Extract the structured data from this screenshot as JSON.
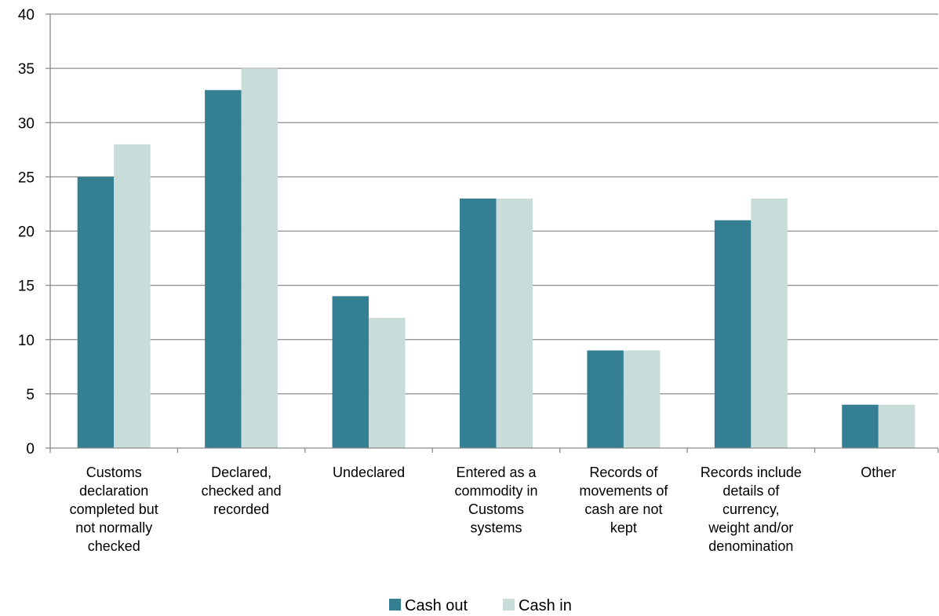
{
  "chart_data": {
    "type": "bar",
    "categories": [
      "Customs declaration completed but not normally checked",
      "Declared, checked and recorded",
      "Undeclared",
      "Entered as a commodity in Customs systems",
      "Records of movements of cash are not kept",
      "Records include details of currency, weight and/or denomination",
      "Other"
    ],
    "category_label_lines": [
      [
        "Customs",
        "declaration",
        "completed but",
        "not normally",
        "checked"
      ],
      [
        "Declared,",
        "checked and",
        "recorded"
      ],
      [
        "Undeclared"
      ],
      [
        "Entered as a",
        "commodity in",
        "Customs",
        "systems"
      ],
      [
        "Records of",
        "movements of",
        "cash are not",
        "kept"
      ],
      [
        "Records include",
        "details of",
        "currency,",
        "weight and/or",
        "denomination"
      ],
      [
        "Other"
      ]
    ],
    "series": [
      {
        "name": "Cash out",
        "color": "#357f92",
        "values": [
          25,
          33,
          14,
          23,
          9,
          21,
          4
        ]
      },
      {
        "name": "Cash in",
        "color": "#c8dcda",
        "values": [
          28,
          35,
          12,
          23,
          9,
          23,
          4
        ]
      }
    ],
    "ylim": [
      0,
      40
    ],
    "yticks": [
      0,
      5,
      10,
      15,
      20,
      25,
      30,
      35,
      40
    ],
    "grid": true,
    "legend_position": "bottom"
  }
}
